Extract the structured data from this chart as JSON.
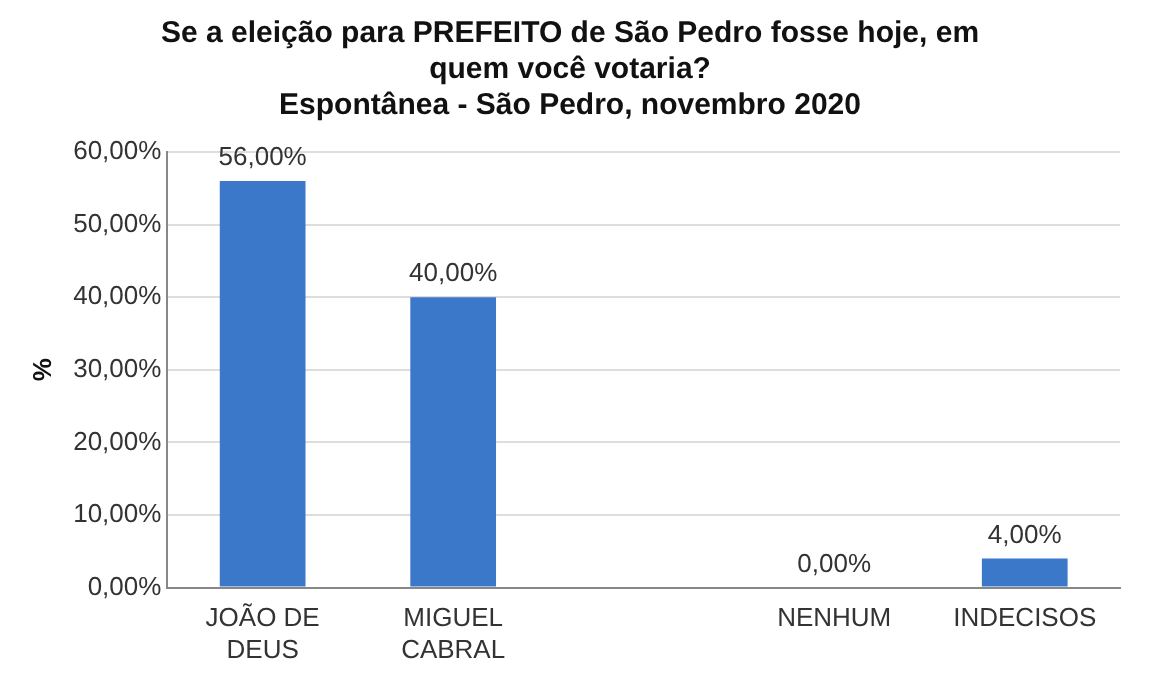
{
  "chart_data": {
    "type": "bar",
    "title": "Se a eleição para PREFEITO de São Pedro fosse hoje, em quem você votaria?",
    "subtitle": "Espontânea - São Pedro, novembro 2020",
    "ylabel": "%",
    "categories": [
      "JOÃO DE DEUS",
      "MIGUEL CABRAL",
      null,
      "NENHUM",
      "INDECISOS"
    ],
    "values": [
      56,
      40,
      null,
      0,
      4
    ],
    "value_labels": [
      "56,00%",
      "40,00%",
      null,
      "0,00%",
      "4,00%"
    ],
    "color": "#3b78c9",
    "ylim": [
      0,
      60
    ],
    "yticks": [
      {
        "value": 0,
        "label": "0,00%"
      },
      {
        "value": 10,
        "label": "10,00%"
      },
      {
        "value": 20,
        "label": "20,00%"
      },
      {
        "value": 30,
        "label": "30,00%"
      },
      {
        "value": 40,
        "label": "40,00%"
      },
      {
        "value": 50,
        "label": "50,00%"
      },
      {
        "value": 60,
        "label": "60,00%"
      }
    ],
    "grid": "y",
    "legend": false
  }
}
